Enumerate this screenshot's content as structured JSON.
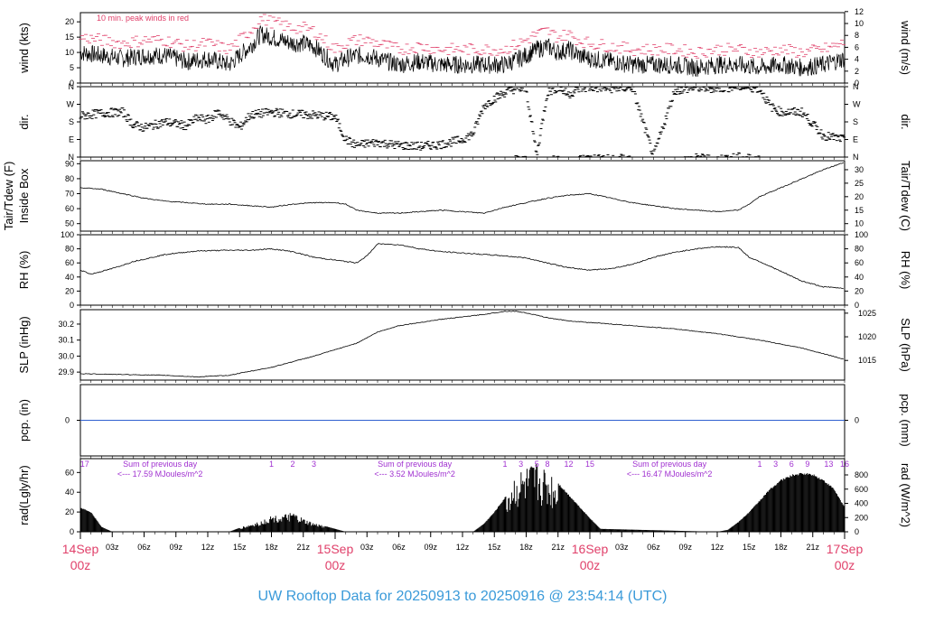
{
  "title": "UW Rooftop Data for 20250913  to  20250916 @ 23:54:14  (UTC)",
  "colors": {
    "title": "#3a9ad9",
    "date": "#e0406a",
    "purple": "#a030d0",
    "peak": "#e0406a",
    "pcp": "#3060d0",
    "ink": "#000000"
  },
  "x_axis": {
    "range_hours": [
      0,
      72
    ],
    "hour_ticks": [
      "03z",
      "06z",
      "09z",
      "12z",
      "15z",
      "18z",
      "21z",
      "03z",
      "06z",
      "09z",
      "12z",
      "15z",
      "18z",
      "21z",
      "03z",
      "06z",
      "09z",
      "12z",
      "15z",
      "18z",
      "21z"
    ],
    "hour_tick_positions": [
      3,
      6,
      9,
      12,
      15,
      18,
      21,
      27,
      30,
      33,
      36,
      39,
      42,
      45,
      51,
      54,
      57,
      60,
      63,
      66,
      69
    ],
    "day_labels": [
      {
        "h": 0,
        "date": "14Sep",
        "time": "00z"
      },
      {
        "h": 24,
        "date": "15Sep",
        "time": "00z"
      },
      {
        "h": 48,
        "date": "16Sep",
        "time": "00z"
      },
      {
        "h": 72,
        "date": "17Sep",
        "time": "00z"
      }
    ]
  },
  "chart_data": [
    {
      "type": "line",
      "panel": "wind",
      "ylabel_left": "wind (kts)",
      "ylabel_right": "wind (m/s)",
      "ylim": [
        0,
        23
      ],
      "left_ticks": [
        0,
        5,
        10,
        15,
        20
      ],
      "right_ticks": [
        0,
        2,
        4,
        6,
        8,
        10,
        12
      ],
      "annotation": "10 min. peak winds in red",
      "series": [
        {
          "x": [
            0,
            2,
            4,
            6,
            8,
            10,
            12,
            14,
            15,
            16,
            17,
            18,
            19,
            20,
            21,
            22,
            23,
            24,
            25,
            26,
            27,
            28,
            30,
            32,
            34,
            36,
            38,
            40,
            42,
            43,
            44,
            45,
            46,
            47,
            48,
            50,
            52,
            54,
            56,
            58,
            60,
            62,
            64,
            66,
            68,
            70,
            72
          ],
          "values": [
            10,
            9,
            8,
            9,
            9,
            7,
            8,
            6,
            9,
            12,
            16,
            15,
            14,
            13,
            13,
            12,
            9,
            6,
            8,
            9,
            9,
            8,
            6,
            7,
            6,
            6,
            6,
            6,
            9,
            11,
            12,
            10,
            11,
            9,
            8,
            7,
            6,
            6,
            6,
            5,
            6,
            6,
            5,
            6,
            5,
            6,
            8
          ]
        }
      ]
    },
    {
      "type": "scatter",
      "panel": "dir",
      "ylabel_left": "dir.",
      "ylabel_right": "dir.",
      "left_ticks": [
        "N",
        "E",
        "S",
        "W",
        "N"
      ],
      "right_ticks": [
        "N",
        "E",
        "S",
        "W",
        "N"
      ],
      "series": [
        {
          "x": [
            0,
            2,
            4,
            5,
            6,
            8,
            10,
            11,
            12,
            13,
            14,
            15,
            16,
            18,
            20,
            22,
            24,
            25,
            26,
            27,
            28,
            30,
            32,
            34,
            36,
            37,
            38,
            39,
            40,
            41,
            42,
            43,
            44,
            45,
            46,
            47,
            48,
            50,
            52,
            54,
            56,
            58,
            60,
            62,
            64,
            65,
            66,
            68,
            70,
            72
          ],
          "values": [
            210,
            225,
            230,
            165,
            150,
            180,
            160,
            200,
            190,
            230,
            190,
            150,
            215,
            230,
            220,
            215,
            205,
            90,
            60,
            70,
            75,
            60,
            55,
            65,
            90,
            120,
            260,
            300,
            330,
            350,
            345,
            10,
            330,
            355,
            320,
            350,
            355,
            350,
            355,
            5,
            340,
            355,
            350,
            360,
            350,
            260,
            230,
            230,
            110,
            90
          ]
        }
      ]
    },
    {
      "type": "line",
      "panel": "temp",
      "ylabel_left": "Inside Box",
      "ylabel_left2": "Tair/Tdew (F)",
      "ylabel_right": "Tair/Tdew (C)",
      "ylim": [
        45,
        92
      ],
      "left_ticks": [
        50,
        60,
        70,
        80,
        90
      ],
      "right_ticks": [
        10,
        15,
        20,
        25,
        30
      ],
      "series": [
        {
          "x": [
            0,
            2,
            4,
            6,
            8,
            10,
            12,
            14,
            16,
            18,
            20,
            22,
            24,
            25,
            26,
            28,
            30,
            32,
            34,
            36,
            38,
            39,
            40,
            42,
            44,
            46,
            48,
            50,
            52,
            54,
            56,
            58,
            60,
            62,
            63,
            64,
            66,
            68,
            70,
            72
          ],
          "values": [
            74,
            73,
            70,
            67,
            65,
            64,
            63,
            63,
            62,
            61,
            63,
            64,
            64,
            63,
            59,
            57,
            57,
            58,
            59,
            58,
            57,
            59,
            61,
            64,
            67,
            69,
            70,
            67,
            64,
            62,
            60,
            59,
            58,
            59,
            63,
            68,
            74,
            80,
            86,
            91
          ]
        }
      ]
    },
    {
      "type": "line",
      "panel": "rh",
      "ylabel_left": "RH (%)",
      "ylabel_right": "RH (%)",
      "ylim": [
        0,
        100
      ],
      "left_ticks": [
        0,
        20,
        40,
        60,
        80,
        100
      ],
      "right_ticks": [
        0,
        20,
        40,
        60,
        80,
        100
      ],
      "series": [
        {
          "x": [
            0,
            1,
            3,
            5,
            8,
            11,
            14,
            16,
            18,
            20,
            22,
            24,
            26,
            27,
            28,
            30,
            32,
            34,
            36,
            38,
            40,
            42,
            44,
            46,
            48,
            50,
            52,
            54,
            56,
            58,
            60,
            62,
            63,
            64,
            65,
            66,
            68,
            70,
            72
          ],
          "values": [
            50,
            44,
            52,
            62,
            72,
            77,
            78,
            78,
            80,
            76,
            68,
            64,
            60,
            70,
            87,
            86,
            80,
            76,
            74,
            72,
            70,
            67,
            60,
            53,
            50,
            52,
            58,
            68,
            75,
            80,
            83,
            82,
            68,
            62,
            55,
            48,
            34,
            26,
            24
          ]
        }
      ]
    },
    {
      "type": "line",
      "panel": "slp",
      "ylabel_left": "SLP (inHg)",
      "ylabel_right": "SLP (hPa)",
      "ylim": [
        29.85,
        30.29
      ],
      "left_ticks": [
        29.9,
        30.0,
        30.1,
        30.2
      ],
      "right_ticks": [
        1015,
        1020,
        1025
      ],
      "series": [
        {
          "x": [
            0,
            4,
            8,
            11,
            14,
            18,
            22,
            26,
            28,
            30,
            34,
            38,
            40,
            41,
            42,
            44,
            46,
            48,
            52,
            56,
            60,
            64,
            68,
            72
          ],
          "values": [
            29.89,
            29.885,
            29.88,
            29.87,
            29.88,
            29.93,
            30.0,
            30.08,
            30.15,
            30.19,
            30.23,
            30.26,
            30.28,
            30.28,
            30.27,
            30.24,
            30.22,
            30.21,
            30.19,
            30.17,
            30.14,
            30.1,
            30.05,
            29.98
          ]
        }
      ]
    },
    {
      "type": "line",
      "panel": "pcp",
      "ylabel_left": "pcp. (in)",
      "ylabel_right": "pcp. (mm)",
      "left_ticks": [
        0
      ],
      "right_ticks": [
        0
      ],
      "series": [
        {
          "x": [
            0,
            72
          ],
          "values": [
            0,
            0
          ]
        }
      ]
    },
    {
      "type": "area",
      "panel": "rad",
      "ylabel_left": "rad(Lgly/hr)",
      "ylabel_right": "rad (W/m^2)",
      "ylim": [
        0,
        74
      ],
      "left_ticks": [
        0,
        20,
        40,
        60
      ],
      "right_ticks": [
        0,
        200,
        400,
        600,
        800
      ],
      "series": [
        {
          "x": [
            0,
            1,
            2,
            3,
            12,
            13,
            14,
            15,
            16,
            17,
            18,
            19,
            20,
            21,
            22,
            23,
            24,
            25,
            36,
            37,
            38,
            39,
            40,
            41,
            42,
            43,
            44,
            45,
            46,
            47,
            48,
            49,
            60,
            61,
            62,
            63,
            64,
            65,
            66,
            67,
            68,
            69,
            70,
            71,
            72
          ],
          "values": [
            25,
            20,
            5,
            0,
            0,
            0,
            0,
            4,
            7,
            10,
            15,
            15,
            18,
            12,
            8,
            6,
            3,
            0,
            0,
            0,
            8,
            20,
            35,
            55,
            60,
            65,
            58,
            50,
            38,
            26,
            14,
            3,
            0,
            2,
            10,
            20,
            32,
            44,
            53,
            58,
            60,
            59,
            53,
            44,
            25
          ]
        }
      ],
      "annotations": [
        {
          "h": 0.4,
          "text": "17"
        },
        {
          "h": 18,
          "text": "1"
        },
        {
          "h": 20,
          "text": "2"
        },
        {
          "h": 22,
          "text": "3"
        },
        {
          "h": 40,
          "text": "1"
        },
        {
          "h": 41.5,
          "text": "3"
        },
        {
          "h": 43,
          "text": "5"
        },
        {
          "h": 44,
          "text": "8"
        },
        {
          "h": 46,
          "text": "12"
        },
        {
          "h": 48,
          "text": "15"
        },
        {
          "h": 64,
          "text": "1"
        },
        {
          "h": 65.5,
          "text": "3"
        },
        {
          "h": 67,
          "text": "6"
        },
        {
          "h": 68.5,
          "text": "9"
        },
        {
          "h": 70.5,
          "text": "13"
        },
        {
          "h": 72,
          "text": "16"
        }
      ],
      "day_sums": [
        {
          "h": 7.5,
          "line1": "Sum of previous day",
          "line2": "<--- 17.59 MJoules/m^2"
        },
        {
          "h": 31.5,
          "line1": "Sum of previous day",
          "line2": "<--- 3.52 MJoules/m^2"
        },
        {
          "h": 55.5,
          "line1": "Sum of previous day",
          "line2": "<--- 16.47 MJoules/m^2"
        }
      ]
    }
  ]
}
